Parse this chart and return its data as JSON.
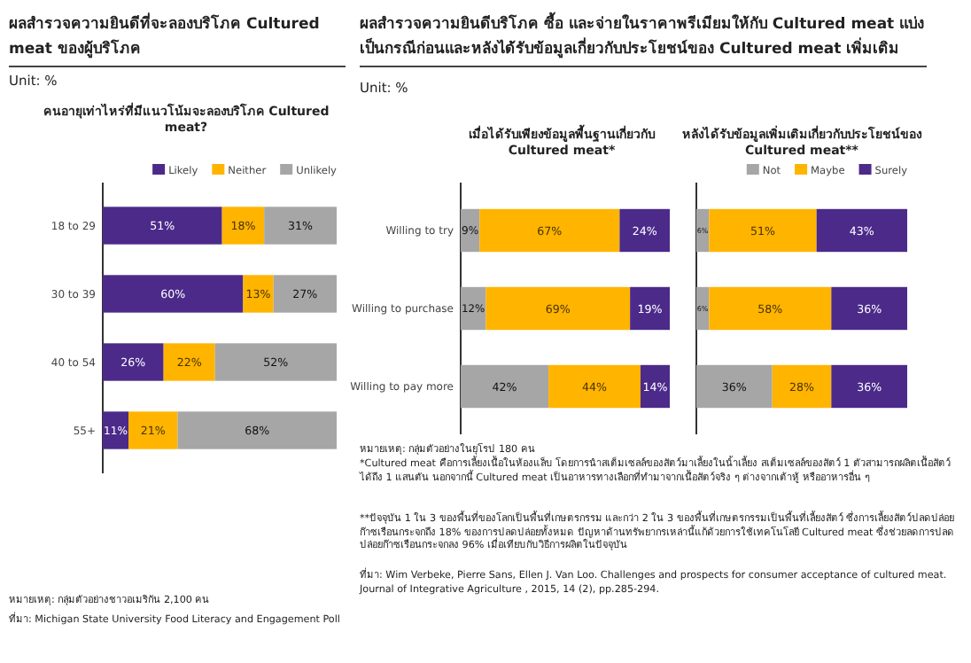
{
  "chart_data": [
    {
      "type": "bar",
      "orientation": "horizontal",
      "stacked": true,
      "title": "คนอายุเท่าไหร่ที่มีแนวโน้มจะลองบริโภค Cultured meat?",
      "categories": [
        "18 to 29",
        "30 to 39",
        "40 to 54",
        "55+"
      ],
      "legend": "top right",
      "series": [
        {
          "name": "Likely",
          "color": "#4b2a8a",
          "values": [
            51,
            60,
            26,
            11
          ],
          "value_labels": [
            "51%",
            "60%",
            "26%",
            "11%"
          ]
        },
        {
          "name": "Neither",
          "color": "#ffb400",
          "values": [
            18,
            13,
            22,
            21
          ],
          "value_labels": [
            "18%",
            "13%",
            "22%",
            "21%"
          ]
        },
        {
          "name": "Unlikely",
          "color": "#a6a6a6",
          "values": [
            31,
            27,
            52,
            68
          ],
          "value_labels": [
            "31%",
            "27%",
            "52%",
            "68%"
          ]
        }
      ],
      "annotations": [
        "ผลสำรวจความยินดีที่จะลองบริโภค Cultured meat ของผู้บริโภค",
        "Unit: %",
        "หมายเหตุ: กลุ่มตัวอย่างชาวอเมริกัน 2,100 คน",
        "ที่มา: Michigan State University Food Literacy and Engagement Poll"
      ]
    },
    {
      "type": "bar",
      "orientation": "horizontal",
      "stacked": true,
      "title": "เมื่อได้รับเพียงข้อมูลพื้นฐานเกี่ยวกับ Cultured meat*",
      "categories": [
        "Willing to try",
        "Willing to purchase",
        "Willing to pay more"
      ],
      "legend": false,
      "series": [
        {
          "color": "#a6a6a6",
          "values": [
            9,
            12,
            42
          ],
          "value_labels": [
            "9%",
            "12%",
            "42%"
          ]
        },
        {
          "color": "#ffb400",
          "values": [
            67,
            69,
            44
          ],
          "value_labels": [
            "67%",
            "69%",
            "44%"
          ]
        },
        {
          "color": "#4b2a8a",
          "values": [
            24,
            19,
            14
          ],
          "value_labels": [
            "24%",
            "19%",
            "14%"
          ]
        }
      ],
      "annotations": [
        "ผลสำรวจความยินดีบริโภค ซื้อ และจ่ายในราคาพรีเมียมให้กับ Cultured meat แบ่งเป็นกรณีก่อนและหลังได้รับข้อมูลเกี่ยวกับประโยชน์ของ Cultured meat เพิ่มเติม",
        "Unit: %",
        "หมายเหตุ: กลุ่มตัวอย่างในยุโรป 180 คน",
        "*Cultured meat คือการเลี้ยงเนื้อในห้องแล็บ โดยการนำสเต็มเซลล์ของสัตว์มาเลี้ยงในน้ำเลี้ยง สเต็มเซลล์ของสัตว์ 1 ตัวสามารถผลิตเนื้อสัตว์ได้ถึง 1 แสนตัน นอกจากนี้ Cultured meat เป็นอาหารทางเลือกที่ทำมาจากเนื้อสัตว์จริง ๆ ต่างจากเต้าหู้ หรืออาหารอื่น ๆ",
        "**ปัจจุบัน 1 ใน 3 ของพื้นที่ของโลกเป็นพื้นที่เกษตรกรรม และกว่า 2 ใน 3 ของพื้นที่เกษตรกรรมเป็นพื้นที่เลี้ยงสัตว์ ซึ่งการเลี้ยงสัตว์ปลดปล่อยก๊าซเรือนกระจกถึง 18% ของการปลดปล่อยทั้งหมด ปัญหาด้านทรัพยากรเหล่านี้แก้ด้วยการใช้เทคโนโลยี Cultured meat ซึ่งช่วยลดการปลดปล่อยก๊าซเรือนกระจกลง 96% เมื่อเทียบกับวิธีการผลิตในปัจจุบัน",
        "ที่มา: Wim Verbeke, Pierre Sans, Ellen J. Van Loo. Challenges and prospects for consumer acceptance of cultured meat. Journal of Integrative Agriculture , 2015, 14 (2), pp.285-294."
      ]
    },
    {
      "type": "bar",
      "orientation": "horizontal",
      "stacked": true,
      "title": "หลังได้รับข้อมูลเพิ่มเติมเกี่ยวกับประโยชน์ของ Cultured meat**",
      "categories": [
        null,
        null,
        null
      ],
      "legend": "top right",
      "series": [
        {
          "name": "Not",
          "color": "#a6a6a6",
          "values": [
            6,
            6,
            36
          ],
          "value_labels": [
            "6%",
            "6%",
            "36%"
          ]
        },
        {
          "name": "Maybe",
          "color": "#ffb400",
          "values": [
            51,
            58,
            28
          ],
          "value_labels": [
            "51%",
            "58%",
            "28%"
          ]
        },
        {
          "name": "Surely",
          "color": "#4b2a8a",
          "values": [
            43,
            36,
            36
          ],
          "value_labels": [
            "43%",
            "36%",
            "36%"
          ]
        }
      ]
    }
  ]
}
